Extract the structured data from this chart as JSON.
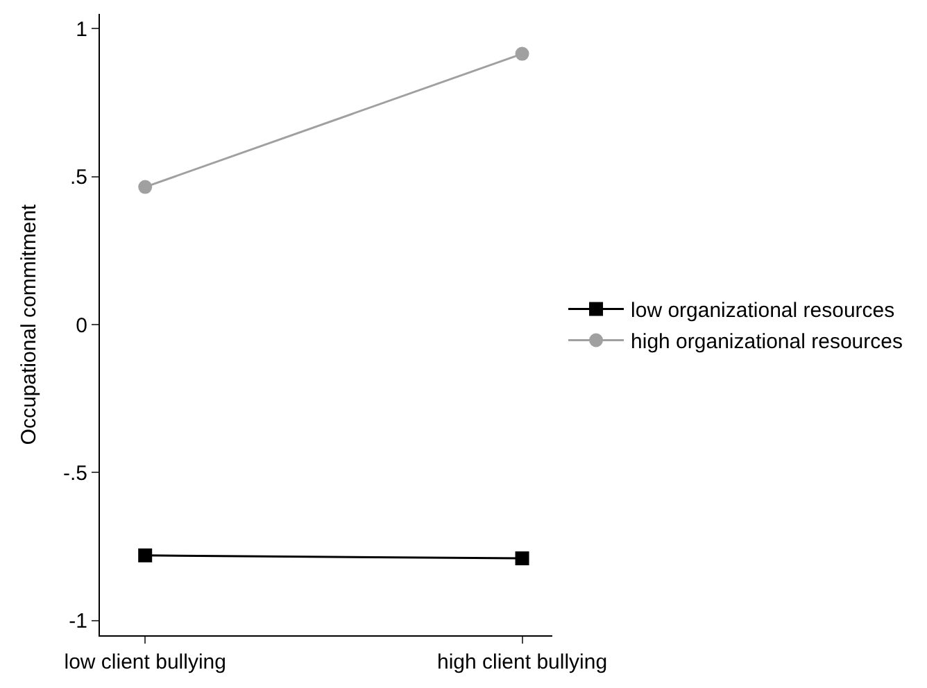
{
  "chart_data": {
    "type": "line",
    "ylabel": "Occupational commitment",
    "categories": [
      "low client bullying",
      "high client bullying"
    ],
    "series": [
      {
        "name": "low organizational resources",
        "color": "#000000",
        "marker": "square",
        "values": [
          -0.78,
          -0.79
        ]
      },
      {
        "name": "high organizational resources",
        "color": "#a0a0a0",
        "marker": "circle",
        "values": [
          0.465,
          0.915
        ]
      }
    ],
    "ylim": [
      -1.05,
      1.05
    ],
    "yticks": [
      {
        "value": -1,
        "label": "-1"
      },
      {
        "value": -0.5,
        "label": "-.5"
      },
      {
        "value": 0,
        "label": "0"
      },
      {
        "value": 0.5,
        "label": ".5"
      },
      {
        "value": 1,
        "label": "1"
      }
    ],
    "legend": "right"
  }
}
